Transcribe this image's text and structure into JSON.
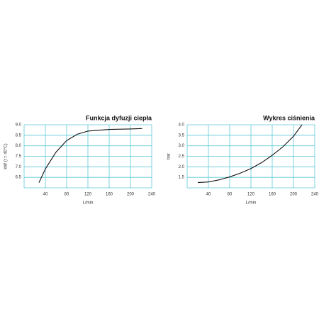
{
  "chart_data": [
    {
      "type": "line",
      "title": "Funkcja dyfuzji ciepła",
      "y_label": "kW (t = 40°C)",
      "x_label": "L/min",
      "x": [
        28,
        40,
        60,
        80,
        100,
        120,
        160,
        200,
        222
      ],
      "values": [
        6.25,
        6.9,
        7.7,
        8.25,
        8.55,
        8.7,
        8.78,
        8.8,
        8.82
      ],
      "color": "#111111",
      "grid_color": "#5bc8d8",
      "xlim": [
        0,
        240
      ],
      "xticks": [
        40,
        80,
        120,
        160,
        200,
        240
      ],
      "ylim": [
        6,
        9
      ],
      "yticks": [
        6.5,
        {
          "value": 7,
          "label": "7.0"
        },
        7.5,
        {
          "value": 8,
          "label": "8.0"
        },
        8.5,
        {
          "value": 9,
          "label": "9.0"
        }
      ],
      "grid": true
    },
    {
      "type": "line",
      "title": "Wykres ciśnienia",
      "y_label": "bar",
      "x_label": "L/min",
      "x": [
        20,
        40,
        60,
        80,
        100,
        120,
        140,
        160,
        180,
        200,
        216
      ],
      "values": [
        1.25,
        1.28,
        1.38,
        1.52,
        1.7,
        1.92,
        2.2,
        2.55,
        2.95,
        3.45,
        4.0
      ],
      "color": "#111111",
      "grid_color": "#5bc8d8",
      "xlim": [
        0,
        240
      ],
      "xticks": [
        40,
        80,
        120,
        160,
        200,
        240
      ],
      "ylim": [
        1,
        4
      ],
      "yticks": [
        1.5,
        {
          "value": 2,
          "label": "2.0"
        },
        2.5,
        {
          "value": 3,
          "label": "3.0"
        },
        3.5,
        {
          "value": 4,
          "label": "4.0"
        }
      ],
      "grid": true
    }
  ]
}
